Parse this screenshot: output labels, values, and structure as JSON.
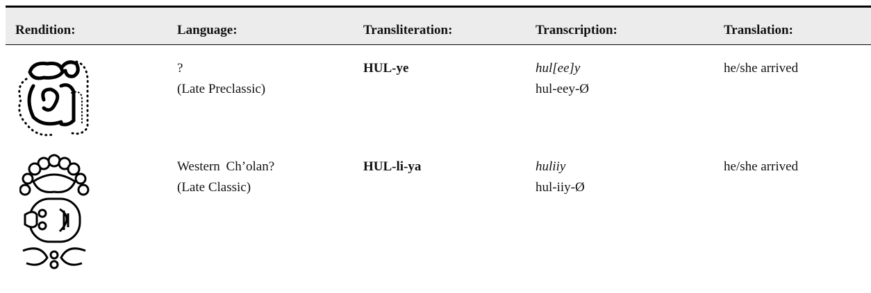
{
  "table": {
    "columns": [
      "Rendition:",
      "Language:",
      "Transliteration:",
      "Transcription:",
      "Translation:"
    ],
    "rows": [
      {
        "language": [
          "?",
          "(Late Preclassic)"
        ],
        "transliteration": "HUL-ye",
        "transcription": [
          "hul[ee]y",
          "hul-eey-Ø"
        ],
        "translation": "he/she arrived"
      },
      {
        "language": [
          "Western Ch’olan?",
          "(Late Classic)"
        ],
        "transliteration": "HUL-li-ya",
        "transcription": [
          "huliiy",
          "hul-iiy-Ø"
        ],
        "translation": "he/she arrived"
      }
    ]
  }
}
